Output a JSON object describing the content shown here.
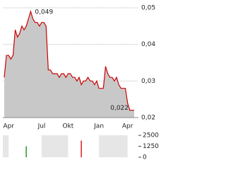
{
  "chart_data": [
    {
      "type": "area",
      "color": "#cc0000",
      "fill": "#c8c8c8",
      "grid": true,
      "categories": [
        null,
        null,
        "Apr",
        null,
        null,
        null,
        null,
        null,
        null,
        null,
        null,
        null,
        null,
        null,
        null,
        null,
        null,
        "Jul",
        null,
        null,
        null,
        null,
        null,
        null,
        null,
        null,
        null,
        null,
        null,
        "Okt",
        null,
        null,
        null,
        null,
        null,
        null,
        null,
        null,
        null,
        null,
        null,
        null,
        null,
        "Jan",
        null,
        null,
        null,
        null,
        null,
        null,
        null,
        null,
        null,
        null,
        null,
        null,
        "Apr",
        null,
        null,
        null
      ],
      "values": [
        0.031,
        0.037,
        0.037,
        0.036,
        0.037,
        0.044,
        0.042,
        0.043,
        0.045,
        0.044,
        0.045,
        0.047,
        0.049,
        0.047,
        0.046,
        0.046,
        0.045,
        0.046,
        0.046,
        0.045,
        0.033,
        0.033,
        0.032,
        0.032,
        0.032,
        0.031,
        0.032,
        0.032,
        0.031,
        0.032,
        0.032,
        0.031,
        0.031,
        0.03,
        0.031,
        0.029,
        0.03,
        0.03,
        0.031,
        0.03,
        0.03,
        0.029,
        0.03,
        0.028,
        0.028,
        0.028,
        0.034,
        0.032,
        0.031,
        0.031,
        0.03,
        0.031,
        0.029,
        0.028,
        0.028,
        0.028,
        0.024,
        0.022,
        0.022,
        0.022
      ],
      "ylim": [
        0.02,
        0.05
      ],
      "yticks": [
        {
          "value": 0.02,
          "label": "0,02"
        },
        {
          "value": 0.03,
          "label": "0,03"
        },
        {
          "value": 0.04,
          "label": "0,04"
        },
        {
          "value": 0.05,
          "label": "0,05"
        }
      ],
      "annotations": [
        {
          "value": 0.049,
          "label": "0,049"
        },
        {
          "value": 0.022,
          "label": "0,022"
        }
      ]
    },
    {
      "type": "bar",
      "up_color": "#2ca02c",
      "down_color": "#d62728",
      "values": [
        0,
        0,
        0,
        0,
        0,
        0,
        0,
        0,
        0,
        0,
        1250,
        0,
        0,
        0,
        0,
        0,
        0,
        0,
        0,
        0,
        0,
        0,
        0,
        0,
        0,
        0,
        0,
        0,
        0,
        0,
        0,
        0,
        0,
        0,
        0,
        1900,
        0,
        0,
        0,
        0,
        0,
        0,
        0,
        0,
        0,
        0,
        0,
        0,
        0,
        0,
        0,
        0,
        0,
        0,
        0,
        0,
        0,
        0,
        0,
        0
      ],
      "ylim": [
        0,
        2500
      ],
      "yticks": [
        0,
        1250,
        2500
      ]
    }
  ]
}
